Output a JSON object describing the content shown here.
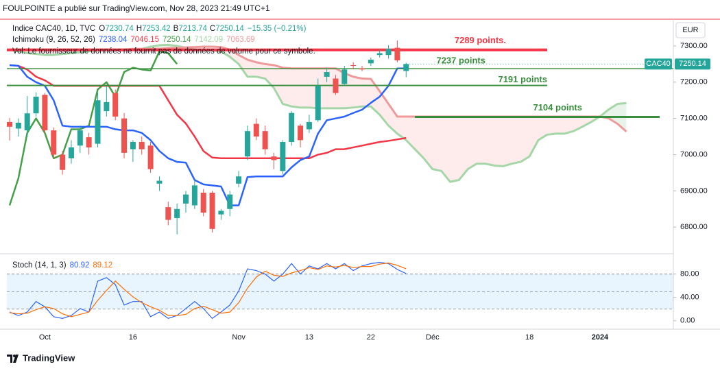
{
  "header": {
    "publisher": "FOULPOINTE a publié sur TradingView.com, Nov 28, 2023 21:49 UTC+1"
  },
  "footer": {
    "brand": "TradingView"
  },
  "chart_data": [
    {
      "type": "candlestick",
      "symbol": "Indice CAC40, 1D, TVC",
      "ohlc_prefixes": [
        "O",
        "H",
        "B",
        "C"
      ],
      "change": "−15.35 (−0.21%)",
      "volume_note": "Vol: Le fournisseur de données ne fournit pas de données de volume pour ce symbole.",
      "currency": "EUR",
      "price_label": "CAC40",
      "indicator": "Ichimoku (9, 26, 52, 26)",
      "up_color": "#26a69a",
      "down_color": "#ef5350",
      "categories": [
        null,
        null,
        null,
        null,
        "Oct",
        null,
        null,
        null,
        null,
        null,
        null,
        null,
        null,
        null,
        "16",
        null,
        null,
        null,
        null,
        null,
        null,
        null,
        null,
        null,
        null,
        null,
        "Nov",
        null,
        null,
        null,
        null,
        null,
        null,
        null,
        "13",
        null,
        null,
        null,
        null,
        null,
        null,
        "22",
        null,
        null,
        null,
        null,
        null,
        null,
        "Déc",
        null,
        null,
        null,
        null,
        null,
        null,
        null,
        null,
        null,
        null,
        "18",
        null,
        null,
        null,
        null,
        null,
        null,
        null,
        "2024",
        null,
        null,
        null
      ],
      "open": [
        7090,
        7072,
        7067,
        7114,
        7165,
        7067,
        7000,
        6990,
        7025,
        7048,
        7030,
        7120,
        7170,
        7100,
        7015,
        7035,
        7025,
        6920,
        6855,
        6825,
        6865,
        6860,
        6895,
        6895,
        6835,
        6850,
        6920,
        6995,
        7085,
        7065,
        6995,
        6955,
        7035,
        7080,
        7070,
        7095,
        7215,
        7210,
        7195,
        7247,
        7238,
        7252,
        7275,
        7275,
        7295,
        7230.74,
        null,
        null,
        null,
        null,
        null,
        null,
        null,
        null,
        null,
        null,
        null,
        null,
        null,
        null,
        null,
        null,
        null,
        null,
        null,
        null,
        null,
        null,
        null,
        null,
        null
      ],
      "high": [
        7101,
        7100,
        7162,
        7172,
        7170,
        7075,
        7010,
        7040,
        7080,
        7060,
        7170,
        7190,
        7180,
        7115,
        7040,
        7050,
        7035,
        6940,
        6870,
        6865,
        6900,
        6930,
        6905,
        6900,
        6850,
        6900,
        6955,
        7080,
        7100,
        7080,
        7005,
        7040,
        7120,
        7085,
        7110,
        7210,
        7240,
        7220,
        7245,
        7255,
        7245,
        7268,
        7290,
        7302,
        7315,
        7253.42,
        null,
        null,
        null,
        null,
        null,
        null,
        null,
        null,
        null,
        null,
        null,
        null,
        null,
        null,
        null,
        null,
        null,
        null,
        null,
        null,
        null,
        null,
        null,
        null,
        null
      ],
      "low": [
        7039,
        7050,
        7048,
        7105,
        7060,
        6990,
        6945,
        6975,
        7005,
        7000,
        7020,
        7105,
        7095,
        6990,
        6980,
        7000,
        6950,
        6900,
        6805,
        6780,
        6840,
        6850,
        6830,
        6785,
        6820,
        6830,
        6910,
        6985,
        7040,
        7000,
        6960,
        6945,
        7025,
        7020,
        7060,
        7090,
        7200,
        7165,
        7190,
        7235,
        7230,
        7245,
        7268,
        7265,
        7255,
        7213.74,
        null,
        null,
        null,
        null,
        null,
        null,
        null,
        null,
        null,
        null,
        null,
        null,
        null,
        null,
        null,
        null,
        null,
        null,
        null,
        null,
        null,
        null,
        null,
        null,
        null
      ],
      "close": [
        7077,
        7088,
        7114,
        7160,
        7067,
        7000,
        6958,
        7020,
        7067,
        7020,
        7150,
        7145,
        7105,
        7005,
        7035,
        7015,
        6960,
        6928,
        6820,
        6850,
        6890,
        6915,
        6840,
        6795,
        6845,
        6890,
        6940,
        7065,
        7050,
        7015,
        6985,
        7035,
        7115,
        7040,
        7090,
        7190,
        7228,
        7170,
        7235,
        7245,
        7235,
        7262,
        7280,
        7292,
        7260,
        7250.14,
        null,
        null,
        null,
        null,
        null,
        null,
        null,
        null,
        null,
        null,
        null,
        null,
        null,
        null,
        null,
        null,
        null,
        null,
        null,
        null,
        null,
        null,
        null,
        null,
        null
      ],
      "ichimoku": {
        "conversion": {
          "color": "#2962ff",
          "values": [
            7247,
            7245,
            7215,
            7200,
            7190,
            7150,
            7080,
            7077,
            7077,
            7077,
            7077,
            7077,
            7070,
            7067,
            7067,
            7060,
            7040,
            7010,
            6990,
            6980,
            6978,
            6930,
            6918,
            6915,
            6912,
            6860,
            6860,
            6938,
            6940,
            6940,
            6940,
            6940,
            6965,
            6985,
            6995,
            7058,
            7095,
            7100,
            7105,
            7115,
            7124,
            7143,
            7160,
            7190,
            7238,
            7238.04,
            null,
            null,
            null,
            null,
            null,
            null,
            null,
            null,
            null,
            null,
            null,
            null,
            null,
            null,
            null,
            null,
            null,
            null,
            null,
            null,
            null,
            null,
            null,
            null,
            null
          ]
        },
        "base": {
          "color": "#f23645",
          "values": [
            7247,
            7245,
            7235,
            7215,
            7205,
            7190,
            7190,
            7190,
            7190,
            7190,
            7190,
            7190,
            7190,
            7190,
            7190,
            7190,
            7190,
            7190,
            7150,
            7110,
            7086,
            7050,
            7010,
            6992,
            6990,
            6990,
            6990,
            6990,
            6990,
            6990,
            6990,
            6990,
            6990,
            6990,
            6990,
            7000,
            7005,
            7015,
            7015,
            7020,
            7025,
            7030,
            7035,
            7038,
            7042,
            7046.15,
            null,
            null,
            null,
            null,
            null,
            null,
            null,
            null,
            null,
            null,
            null,
            null,
            null,
            null,
            null,
            null,
            null,
            null,
            null,
            null,
            null,
            null,
            null,
            null,
            null
          ]
        },
        "lagging": {
          "color": "#43a047",
          "values": [
            6860,
            6935,
            7060,
            7100,
            7060,
            6990,
            7000,
            7070,
            7070,
            7080,
            7180,
            7200,
            7160,
            7228,
            7240,
            7235,
            7232,
            7285,
            7280,
            7250.14,
            null,
            null,
            null,
            null,
            null,
            null,
            null,
            null,
            null,
            null,
            null,
            null,
            null,
            null,
            null,
            null,
            null,
            null,
            null,
            null,
            null,
            null,
            null,
            null,
            null,
            null,
            null,
            null,
            null,
            null,
            null,
            null,
            null,
            null,
            null,
            null,
            null,
            null,
            null,
            null,
            null,
            null,
            null,
            null,
            null,
            null,
            null,
            null,
            null,
            null,
            null
          ]
        },
        "lead_a": {
          "color": "#a5d6a7",
          "fill": "rgba(67,160,71,0.12)",
          "values": [
            7290,
            7285,
            7280,
            7278,
            7275,
            7275,
            7278,
            7280,
            7282,
            7285,
            7288,
            7290,
            7290,
            7290,
            7290,
            7292,
            7298,
            7302,
            7303,
            7300,
            7295,
            7290,
            7288,
            7288,
            7285,
            7270,
            7250,
            7215,
            7215,
            7210,
            7184,
            7140,
            7133,
            7130,
            7130,
            7128,
            7128,
            7128,
            7128,
            7130,
            7133,
            7133,
            7110,
            7080,
            7058,
            7040,
            7015,
            6990,
            6960,
            6955,
            6925,
            6930,
            6960,
            6975,
            6975,
            6970,
            6968,
            6975,
            6980,
            6995,
            7040,
            7055,
            7058,
            7058,
            7065,
            7077,
            7090,
            7105,
            7125,
            7140,
            7142.09
          ]
        },
        "lead_b": {
          "color": "#ef9a9a",
          "fill": "rgba(242,54,69,0.1)",
          "values": [
            7290,
            7290,
            7290,
            7290,
            7290,
            7290,
            7290,
            7290,
            7290,
            7290,
            7290,
            7290,
            7290,
            7290,
            7292,
            7292,
            7292,
            7292,
            7294,
            7295,
            7296,
            7297,
            7298,
            7298,
            7297,
            7290,
            7275,
            7262,
            7255,
            7250,
            7247,
            7240,
            7238,
            7238,
            7238,
            7238,
            7238,
            7238,
            7225,
            7215,
            7210,
            7209,
            7175,
            7140,
            7105,
            7105,
            7105,
            7105,
            7105,
            7105,
            7105,
            7105,
            7105,
            7105,
            7105,
            7105,
            7105,
            7105,
            7105,
            7105,
            7105,
            7105,
            7105,
            7105,
            7105,
            7105,
            7105,
            7105,
            7100,
            7085,
            7063.69
          ]
        }
      },
      "levels": [
        {
          "label": "7289 points.",
          "value": 7289,
          "color": "#f23645"
        },
        {
          "label": "7237 points",
          "value": 7237,
          "color": "#388e3c"
        },
        {
          "label": "7191 points",
          "value": 7191,
          "color": "#388e3c"
        },
        {
          "label": "7104 points",
          "value": 7104,
          "color": "#388e3c"
        }
      ],
      "ylim": [
        6736,
        7370
      ],
      "yticks": [
        {
          "value": 6800,
          "label": "6800.00"
        },
        {
          "value": 6900,
          "label": "6900.00"
        },
        {
          "value": 7000,
          "label": "7000.00"
        },
        {
          "value": 7100,
          "label": "7100.00"
        },
        {
          "value": 7200,
          "label": "7200.00"
        },
        {
          "value": 7300,
          "label": "7300.00"
        }
      ]
    },
    {
      "type": "line",
      "title": "Stoch (14, 1, 3)",
      "series": [
        {
          "color": "#2962ff",
          "values": [
            15,
            9,
            15,
            33,
            24,
            7,
            4,
            9,
            21,
            15,
            68,
            74,
            62,
            27,
            33,
            33,
            7,
            15,
            4,
            9,
            21,
            33,
            21,
            4,
            15,
            27,
            51,
            89,
            86,
            80,
            68,
            80,
            98,
            80,
            94,
            89,
            98,
            89,
            98,
            86,
            94,
            98,
            100,
            98,
            88,
            80.92,
            null,
            null,
            null,
            null,
            null,
            null,
            null,
            null,
            null,
            null,
            null,
            null,
            null,
            null,
            null,
            null,
            null,
            null,
            null,
            null,
            null,
            null,
            null,
            null,
            null
          ]
        },
        {
          "color": "#ff6d00",
          "values": [
            14,
            12,
            13,
            19,
            24,
            21,
            12,
            7,
            11,
            15,
            35,
            52,
            68,
            54,
            41,
            31,
            24,
            18,
            9,
            9,
            11,
            21,
            25,
            19,
            13,
            15,
            31,
            56,
            75,
            85,
            78,
            76,
            82,
            86,
            91,
            88,
            94,
            92,
            95,
            91,
            93,
            93,
            97,
            99,
            95,
            89.12,
            null,
            null,
            null,
            null,
            null,
            null,
            null,
            null,
            null,
            null,
            null,
            null,
            null,
            null,
            null,
            null,
            null,
            null,
            null,
            null,
            null,
            null,
            null,
            null,
            null
          ]
        }
      ],
      "band": [
        20,
        80
      ],
      "midline": 50,
      "band_fill": "rgba(33,150,243,0.1)",
      "ylim": [
        -12,
        109
      ],
      "yticks": [
        {
          "value": 0,
          "label": "0.00"
        },
        {
          "value": 40,
          "label": "40.00"
        },
        {
          "value": 80,
          "label": "80.00"
        }
      ]
    }
  ]
}
